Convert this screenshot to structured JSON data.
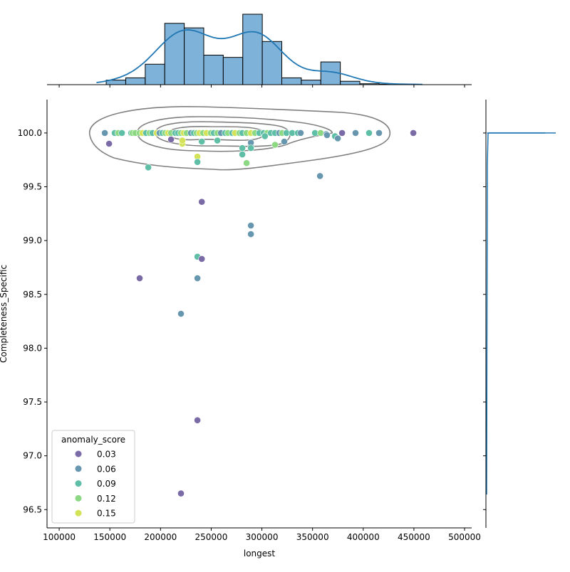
{
  "chart_data": {
    "type": "scatter",
    "subtype": "jointplot with marginal histograms, KDE and density contours",
    "xlabel": "longest",
    "ylabel": "Completeness_Specific",
    "xlim": [
      88000,
      507000
    ],
    "ylim": [
      96.33,
      100.31
    ],
    "x_ticks": [
      100000,
      150000,
      200000,
      250000,
      300000,
      350000,
      400000,
      450000,
      500000
    ],
    "x_tick_labels": [
      "100000",
      "150000",
      "200000",
      "250000",
      "300000",
      "350000",
      "400000",
      "450000",
      "500000"
    ],
    "y_ticks": [
      96.5,
      97.0,
      97.5,
      98.0,
      98.5,
      99.0,
      99.5,
      100.0
    ],
    "y_tick_labels": [
      "96.5",
      "97.0",
      "97.5",
      "98.0",
      "98.5",
      "99.0",
      "99.5",
      "100.0"
    ],
    "grid": false,
    "legend": {
      "title": "anomaly_score",
      "placement": "lower-left",
      "entries": [
        {
          "label": "0.03",
          "value": 0.03,
          "color": "#7a6aa6"
        },
        {
          "label": "0.06",
          "value": 0.06,
          "color": "#6697ae"
        },
        {
          "label": "0.09",
          "value": 0.09,
          "color": "#5ebfa6"
        },
        {
          "label": "0.12",
          "value": 0.12,
          "color": "#8dd883"
        },
        {
          "label": "0.15",
          "value": 0.15,
          "color": "#d4e257"
        }
      ]
    },
    "points": [
      [
        145000,
        100.0,
        0.06
      ],
      [
        154800,
        100.0,
        0.09
      ],
      [
        158300,
        100.0,
        0.12
      ],
      [
        161900,
        100.0,
        0.09
      ],
      [
        171000,
        100.0,
        0.09
      ],
      [
        172400,
        100.0,
        0.12
      ],
      [
        175200,
        100.0,
        0.12
      ],
      [
        179400,
        100.0,
        0.12
      ],
      [
        182300,
        100.0,
        0.15
      ],
      [
        185800,
        100.0,
        0.09
      ],
      [
        189300,
        100.0,
        0.12
      ],
      [
        192100,
        100.0,
        0.09
      ],
      [
        196300,
        100.0,
        0.15
      ],
      [
        199100,
        100.0,
        0.06
      ],
      [
        201900,
        100.0,
        0.09
      ],
      [
        204700,
        100.0,
        0.12
      ],
      [
        207600,
        100.0,
        0.15
      ],
      [
        210400,
        100.0,
        0.12
      ],
      [
        214600,
        100.0,
        0.09
      ],
      [
        217400,
        100.0,
        0.09
      ],
      [
        220200,
        100.0,
        0.12
      ],
      [
        223000,
        100.0,
        0.15
      ],
      [
        225800,
        100.0,
        0.12
      ],
      [
        230000,
        100.0,
        0.06
      ],
      [
        232900,
        100.0,
        0.09
      ],
      [
        235700,
        100.0,
        0.12
      ],
      [
        238500,
        100.0,
        0.15
      ],
      [
        242000,
        100.0,
        0.12
      ],
      [
        245500,
        100.0,
        0.15
      ],
      [
        249700,
        100.0,
        0.12
      ],
      [
        252600,
        100.0,
        0.09
      ],
      [
        256100,
        100.0,
        0.12
      ],
      [
        259600,
        100.0,
        0.06
      ],
      [
        263800,
        100.0,
        0.09
      ],
      [
        266600,
        100.0,
        0.12
      ],
      [
        270800,
        100.0,
        0.09
      ],
      [
        273600,
        100.0,
        0.15
      ],
      [
        277900,
        100.0,
        0.12
      ],
      [
        280700,
        100.0,
        0.09
      ],
      [
        284900,
        100.0,
        0.12
      ],
      [
        289100,
        100.0,
        0.15
      ],
      [
        293300,
        100.0,
        0.12
      ],
      [
        297500,
        100.0,
        0.09
      ],
      [
        301800,
        100.0,
        0.09
      ],
      [
        305300,
        100.0,
        0.12
      ],
      [
        308800,
        100.0,
        0.09
      ],
      [
        313000,
        100.0,
        0.09
      ],
      [
        317200,
        100.0,
        0.06
      ],
      [
        320000,
        100.0,
        0.12
      ],
      [
        324300,
        100.0,
        0.09
      ],
      [
        329900,
        100.0,
        0.09
      ],
      [
        335500,
        100.0,
        0.09
      ],
      [
        338300,
        100.0,
        0.06
      ],
      [
        352400,
        100.0,
        0.09
      ],
      [
        358000,
        100.0,
        0.12
      ],
      [
        363600,
        99.99,
        0.06
      ],
      [
        379100,
        100.0,
        0.03
      ],
      [
        392400,
        100.0,
        0.06
      ],
      [
        405800,
        100.0,
        0.09
      ],
      [
        415600,
        100.0,
        0.06
      ],
      [
        449400,
        100.0,
        0.03
      ],
      [
        364300,
        99.98,
        0.06
      ],
      [
        372100,
        99.97,
        0.09
      ],
      [
        374900,
        99.95,
        0.06
      ],
      [
        303000,
        99.97,
        0.09
      ],
      [
        149200,
        99.9,
        0.03
      ],
      [
        187900,
        99.68,
        0.09
      ],
      [
        210400,
        99.94,
        0.03
      ],
      [
        221600,
        99.9,
        0.15
      ],
      [
        221600,
        99.93,
        0.15
      ],
      [
        236400,
        99.78,
        0.15
      ],
      [
        236400,
        99.73,
        0.09
      ],
      [
        240700,
        99.92,
        0.09
      ],
      [
        256100,
        99.93,
        0.09
      ],
      [
        280700,
        99.86,
        0.09
      ],
      [
        280700,
        99.8,
        0.09
      ],
      [
        284900,
        99.72,
        0.12
      ],
      [
        289100,
        99.88,
        0.06
      ],
      [
        289100,
        99.91,
        0.06
      ],
      [
        289100,
        99.86,
        0.09
      ],
      [
        313000,
        99.89,
        0.12
      ],
      [
        322100,
        99.92,
        0.06
      ],
      [
        357300,
        99.6,
        0.06
      ],
      [
        240700,
        99.36,
        0.03
      ],
      [
        289100,
        99.14,
        0.06
      ],
      [
        289100,
        99.06,
        0.06
      ],
      [
        236400,
        98.85,
        0.09
      ],
      [
        240700,
        98.83,
        0.03
      ],
      [
        179400,
        98.65,
        0.03
      ],
      [
        236400,
        98.65,
        0.06
      ],
      [
        220200,
        98.32,
        0.06
      ],
      [
        236400,
        97.33,
        0.03
      ],
      [
        220200,
        96.65,
        0.03
      ]
    ],
    "marginal_x_histogram": {
      "bin_start": 146400,
      "bin_width": 19250,
      "counts": [
        2,
        3,
        9,
        27,
        25,
        13,
        12,
        31,
        19,
        3,
        2,
        10,
        1.5,
        0.4,
        0.2,
        0.2
      ],
      "color": "#1f77b4",
      "kde": true
    },
    "marginal_y_histogram": {
      "note_bin_center": 100.0,
      "color": "#1f77b4",
      "kde": true
    }
  }
}
